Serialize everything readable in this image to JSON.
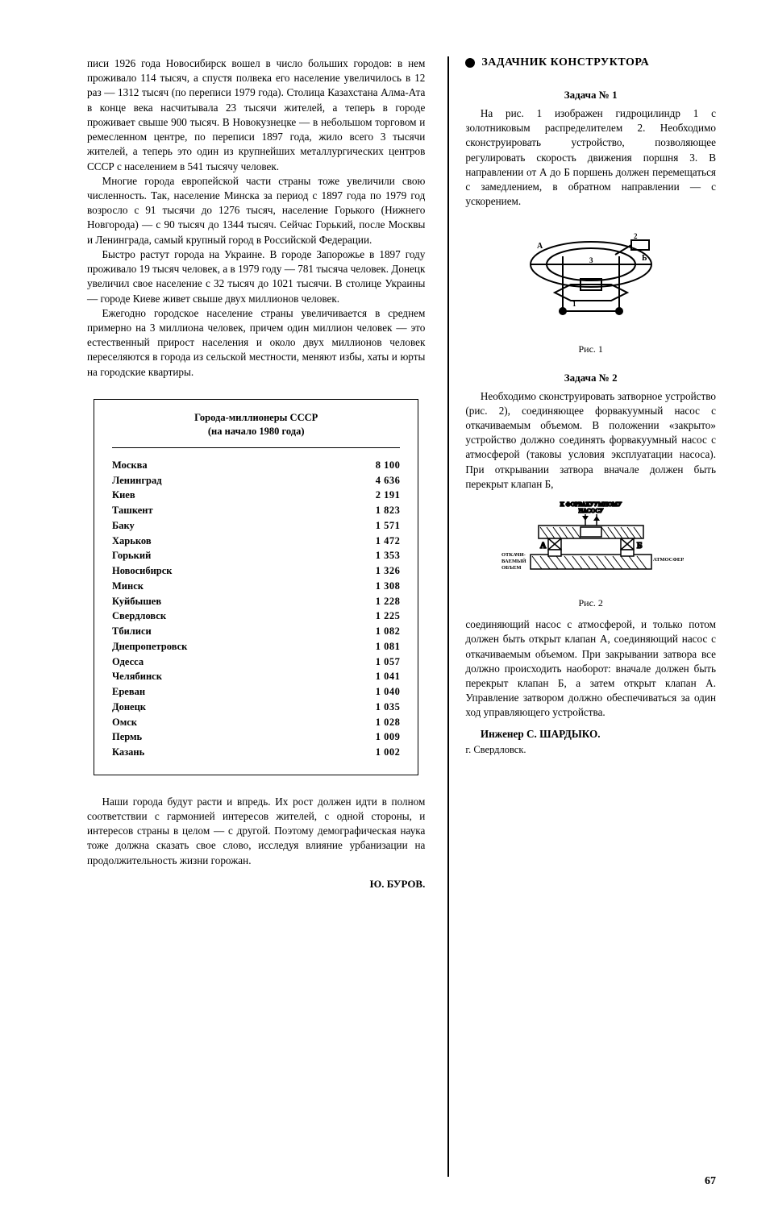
{
  "page_number": "67",
  "left": {
    "paragraphs": [
      "писи 1926 года Новосибирск вошел в число больших городов: в нем проживало 114 тысяч, а спустя полвека его население увеличилось в 12 раз — 1312 тысяч (по переписи 1979 года). Столица Казахстана Алма-Ата в конце века насчитывала 23 тысячи жителей, а теперь в городе проживает свыше 900 тысяч. В Новокузнецке — в небольшом торговом и ремесленном центре, по переписи 1897 года, жило всего 3 тысячи жителей, а теперь это один из крупнейших металлургических центров СССР с населением в 541 тысячу человек.",
      "Многие города европейской части страны тоже увеличили свою численность. Так, население Минска за период с 1897 года по 1979 год возросло с 91 тысячи до 1276 тысяч, население Горького (Нижнего Новгорода) — с 90 тысяч до 1344 тысяч. Сейчас Горький, после Москвы и Ленинграда, самый крупный город в Российской Федерации.",
      "Быстро растут города на Украине. В городе Запорожье в 1897 году проживало 19 тысяч человек, а в 1979 году — 781 тысяча человек. Донецк увеличил свое население с 32 тысяч до 1021 тысячи. В столице Украины — городе Киеве живет свыше двух миллионов человек.",
      "Ежегодно городское население страны увеличивается в среднем примерно на 3 миллиона человек, причем один миллион человек — это естественный прирост населения и около двух миллионов человек переселяются в города из сельской местности, меняют избы, хаты и юрты на городские квартиры."
    ],
    "table": {
      "title_line1": "Города-миллионеры СССР",
      "title_line2": "(на начало 1980 года)",
      "rows": [
        {
          "city": "Москва",
          "pop": "8 100"
        },
        {
          "city": "Ленинград",
          "pop": "4 636"
        },
        {
          "city": "Киев",
          "pop": "2 191"
        },
        {
          "city": "Ташкент",
          "pop": "1 823"
        },
        {
          "city": "Баку",
          "pop": "1 571"
        },
        {
          "city": "Харьков",
          "pop": "1 472"
        },
        {
          "city": "Горький",
          "pop": "1 353"
        },
        {
          "city": "Новосибирск",
          "pop": "1 326"
        },
        {
          "city": "Минск",
          "pop": "1 308"
        },
        {
          "city": "Куйбышев",
          "pop": "1 228"
        },
        {
          "city": "Свердловск",
          "pop": "1 225"
        },
        {
          "city": "Тбилиси",
          "pop": "1 082"
        },
        {
          "city": "Днепропетровск",
          "pop": "1 081"
        },
        {
          "city": "Одесса",
          "pop": "1 057"
        },
        {
          "city": "Челябинск",
          "pop": "1 041"
        },
        {
          "city": "Ереван",
          "pop": "1 040"
        },
        {
          "city": "Донецк",
          "pop": "1 035"
        },
        {
          "city": "Омск",
          "pop": "1 028"
        },
        {
          "city": "Пермь",
          "pop": "1 009"
        },
        {
          "city": "Казань",
          "pop": "1 002"
        }
      ]
    },
    "closing": "Наши города будут расти и впредь. Их рост должен идти в полном соответствии с гармонией интересов жителей, с одной стороны, и интересов страны в целом — с другой. Поэтому демографическая наука тоже должна сказать свое слово, исследуя влияние урбанизации на продолжительность жизни горожан.",
    "author": "Ю. БУРОВ."
  },
  "right": {
    "section_title": "ЗАДАЧНИК КОНСТРУКТОРА",
    "task1_title": "Задача № 1",
    "task1_text": "На рис. 1 изображен гидроцилиндр 1 с золотниковым распределителем 2. Необходимо сконструировать устройство, позволяющее регулировать скорость движения поршня 3. В направлении от А до Б поршень должен перемещаться с замедлением, в обратном направлении — с ускорением.",
    "fig1_caption": "Рис. 1",
    "task2_title": "Задача № 2",
    "task2_text1": "Необходимо сконструировать затворное устройство (рис. 2), соединяющее форвакуумный насос с откачиваемым объемом. В положении «закрыто» устройство должно соединять форвакуумный насос с атмосферой (таковы условия эксплуатации насоса). При открывании затвора вначале должен быть перекрыт клапан Б,",
    "fig2_caption": "Рис. 2",
    "fig2_labels": {
      "top": "К ФОРВАКУУМНОМУ НАСОСУ",
      "a": "А",
      "b": "Б",
      "left": "ОТКАЧИ-\nВАЕМЫЙ\nОБЪЕМ",
      "right": "АТМОСФЕРА"
    },
    "task2_text2": "соединяющий насос с атмосферой, и только потом должен быть открыт клапан А, соединяющий насос с откачиваемым объемом. При закрывании затвора все должно происходить наоборот: вначале должен быть перекрыт клапан Б, а затем открыт клапан А. Управление затвором должно обеспечиваться за один ход управляющего устройства.",
    "author_name": "Инженер С. ШАРДЫКО.",
    "author_city": "г. Свердловск."
  },
  "colors": {
    "text": "#000000",
    "bg": "#ffffff",
    "line": "#000000"
  }
}
